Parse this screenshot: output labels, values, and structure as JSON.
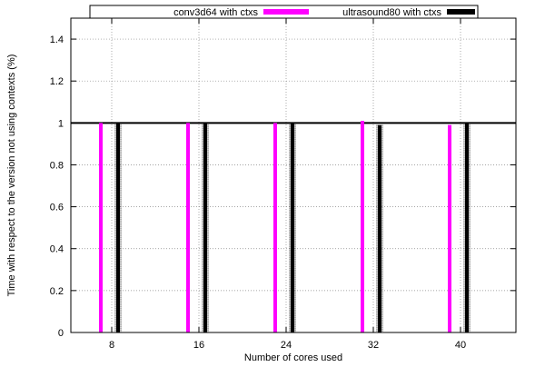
{
  "chart_data": {
    "type": "bar",
    "title": "",
    "xlabel": "Number of cores used",
    "ylabel": "Time with respect to the version not using contexts (%)",
    "categories": [
      "8",
      "16",
      "24",
      "32",
      "40"
    ],
    "ylim": [
      0,
      1.5
    ],
    "yticks": [
      "0",
      "0.2",
      "0.4",
      "0.6",
      "0.8",
      "1",
      "1.2",
      "1.4"
    ],
    "grid": true,
    "legend_position": "top",
    "reference_line": 1,
    "series": [
      {
        "name": "conv3d64 with ctxs",
        "color": "#ff00ff",
        "values": [
          1.0,
          1.0,
          1.0,
          1.01,
          0.99
        ]
      },
      {
        "name": "ultrasound80 with ctxs",
        "color": "#000000",
        "values": [
          1.0,
          1.0,
          1.0,
          0.99,
          1.0
        ]
      }
    ]
  }
}
